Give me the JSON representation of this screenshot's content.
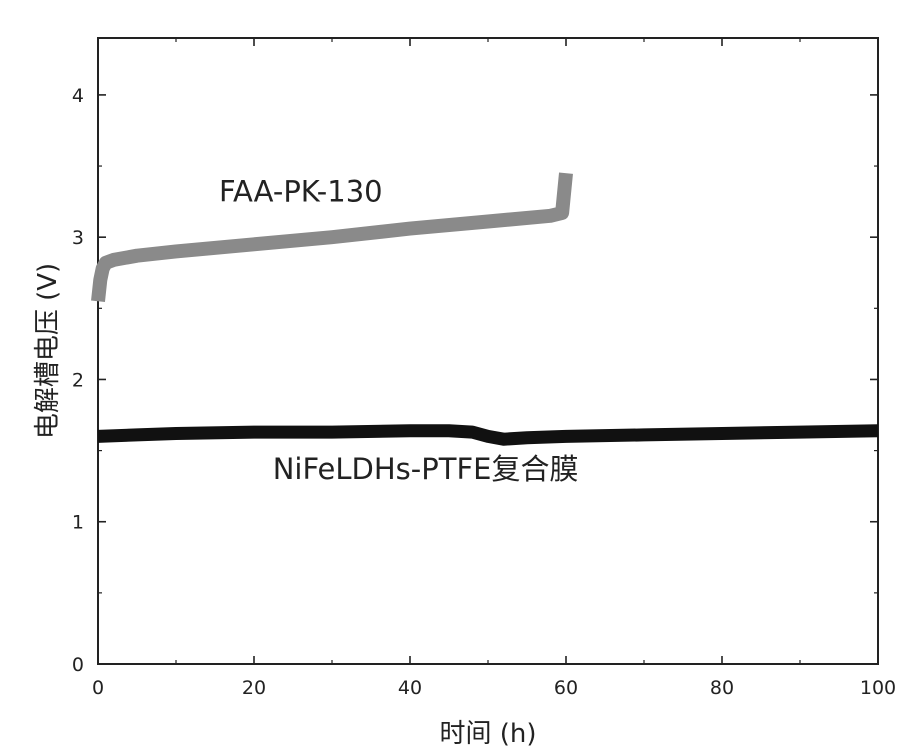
{
  "chart_data": {
    "type": "line",
    "xlabel": "时间 (h)",
    "ylabel": "电解槽电压 (V)",
    "xlim": [
      0,
      100
    ],
    "ylim": [
      0,
      4.4
    ],
    "x_ticks": [
      0,
      20,
      40,
      60,
      80,
      100
    ],
    "y_ticks": [
      0,
      1,
      2,
      3,
      4
    ],
    "grid": false,
    "series": [
      {
        "name": "FAA-PK-130",
        "color": "#8a8a8a",
        "x": [
          0,
          0.3,
          0.6,
          1,
          2,
          5,
          10,
          20,
          30,
          40,
          50,
          58,
          59.5,
          60
        ],
        "y": [
          2.55,
          2.7,
          2.78,
          2.82,
          2.84,
          2.87,
          2.9,
          2.95,
          3.0,
          3.06,
          3.11,
          3.15,
          3.17,
          3.45
        ]
      },
      {
        "name": "NiFeLDHs-PTFE复合膜",
        "color": "#111111",
        "x": [
          0,
          5,
          10,
          20,
          30,
          40,
          45,
          48,
          50,
          52,
          55,
          60,
          70,
          80,
          90,
          100
        ],
        "y": [
          1.6,
          1.61,
          1.62,
          1.63,
          1.63,
          1.64,
          1.64,
          1.63,
          1.6,
          1.58,
          1.59,
          1.6,
          1.61,
          1.62,
          1.63,
          1.64
        ]
      }
    ]
  }
}
